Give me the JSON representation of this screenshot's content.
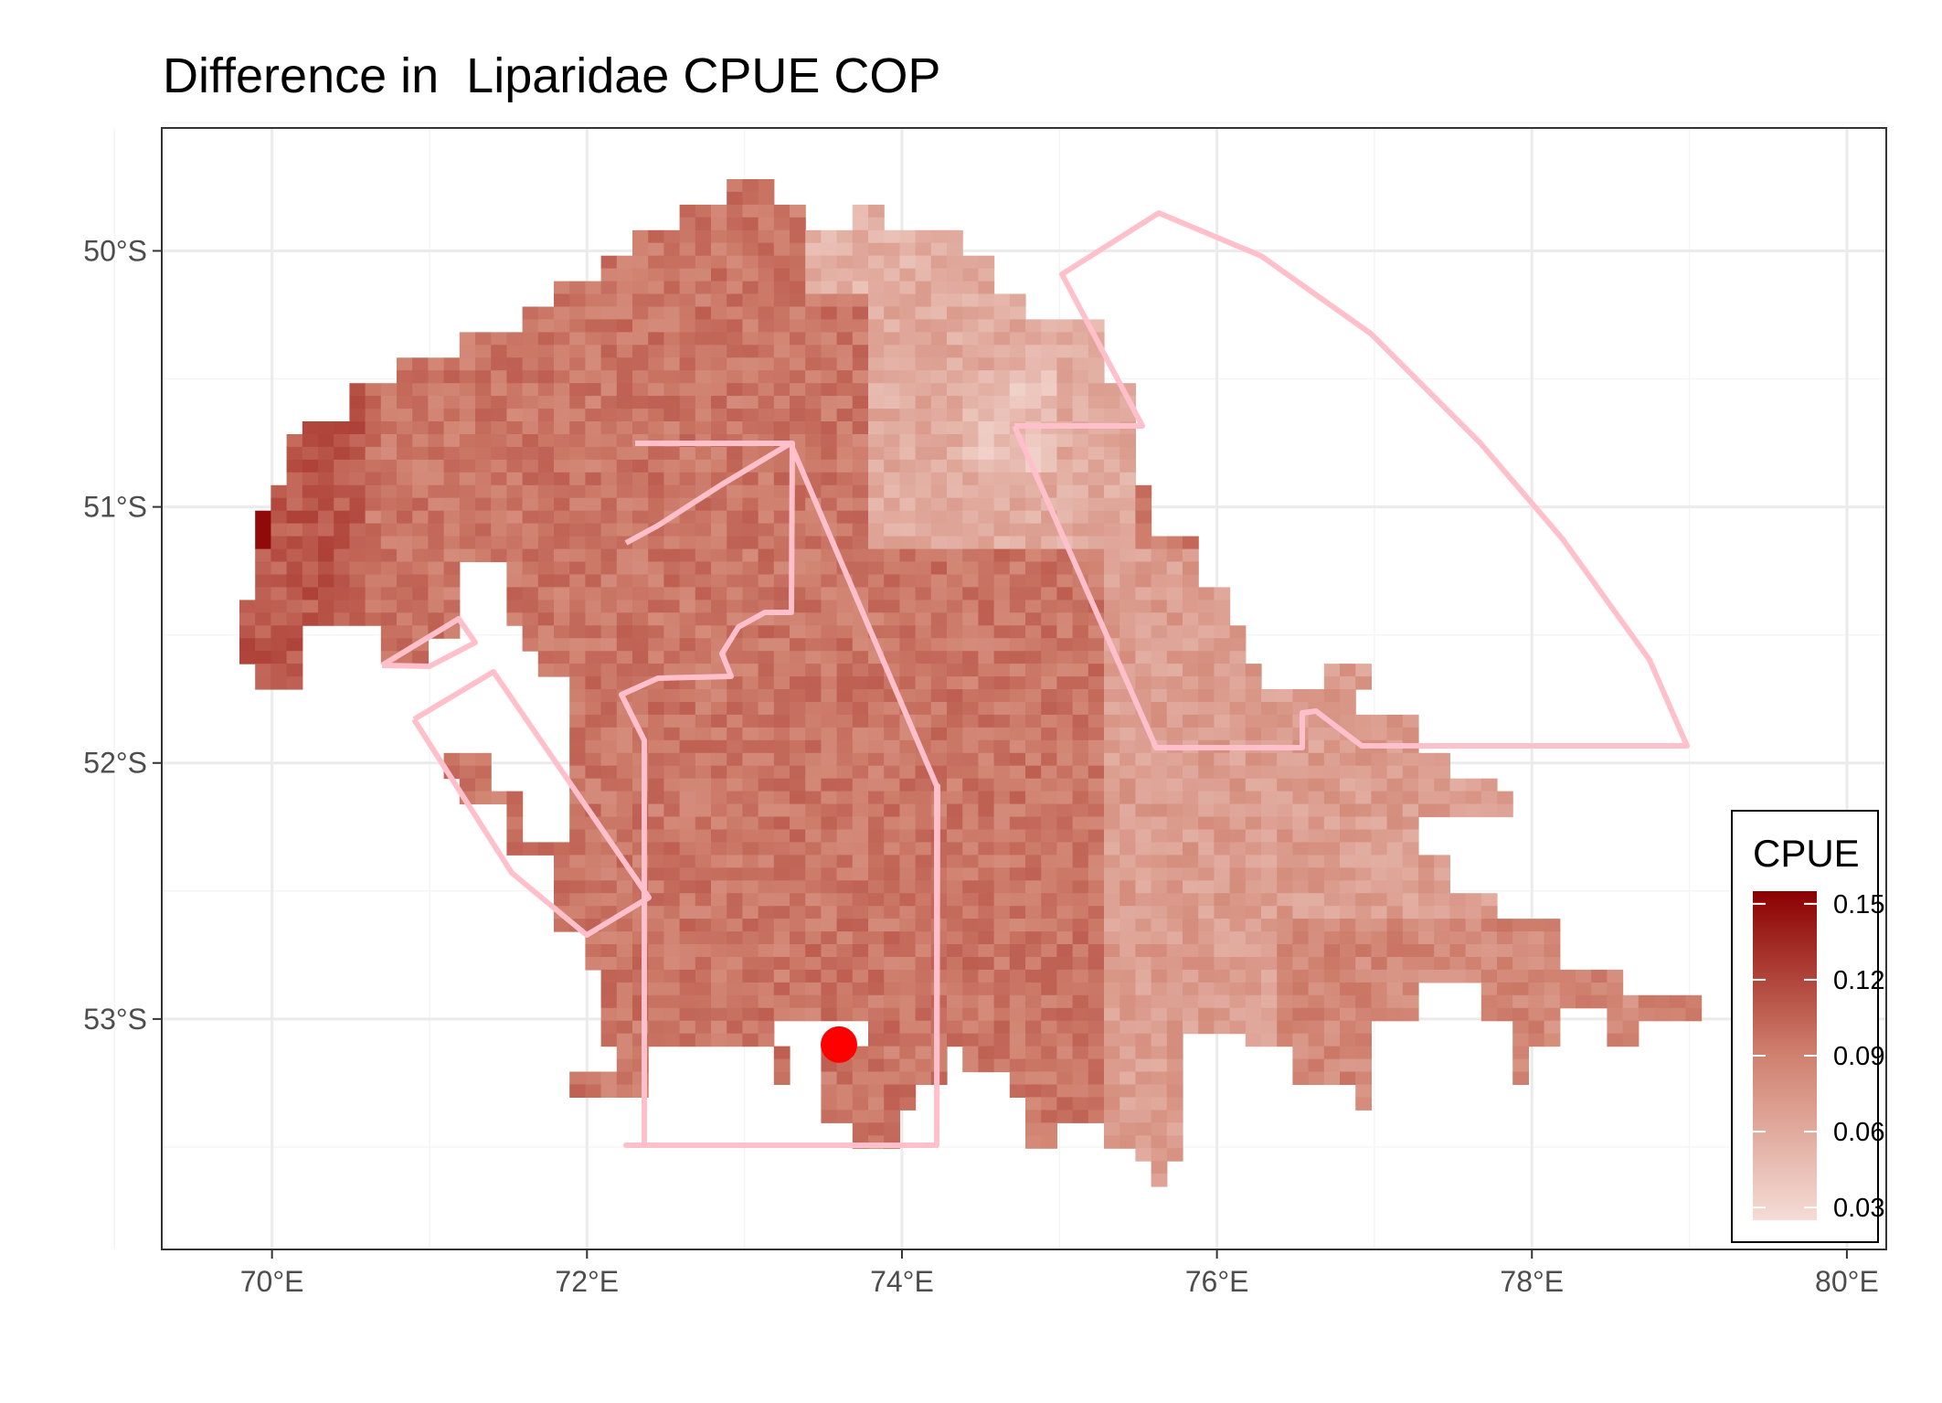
{
  "title": "Difference in  Liparidae CPUE COP",
  "axes": {
    "x_ticks": [
      "70°E",
      "72°E",
      "74°E",
      "76°E",
      "78°E",
      "80°E"
    ],
    "y_ticks": [
      "50°S",
      "51°S",
      "52°S",
      "53°S"
    ],
    "x_values": [
      70,
      72,
      74,
      76,
      78,
      80
    ],
    "y_values": [
      50,
      51,
      52,
      53
    ],
    "xlim": [
      69.3,
      80.25
    ],
    "ylim": [
      49.52,
      53.9
    ]
  },
  "legend": {
    "title": "CPUE",
    "labels": [
      "0.15",
      "0.12",
      "0.09",
      "0.06",
      "0.03"
    ],
    "values": [
      0.15,
      0.12,
      0.09,
      0.06,
      0.03
    ],
    "range": [
      0.025,
      0.155
    ],
    "color_low": "#f5dcd6",
    "color_mid": "#d0816f",
    "color_high": "#8b0000"
  },
  "colors": {
    "boundary": "#ffc0cb",
    "point": "#ff0000",
    "grid": "#ebebeb"
  },
  "marker": {
    "lon": 73.6,
    "lat": 53.1
  },
  "chart_data": {
    "type": "heatmap",
    "legend_position": "bottom-right",
    "grid": true
  }
}
